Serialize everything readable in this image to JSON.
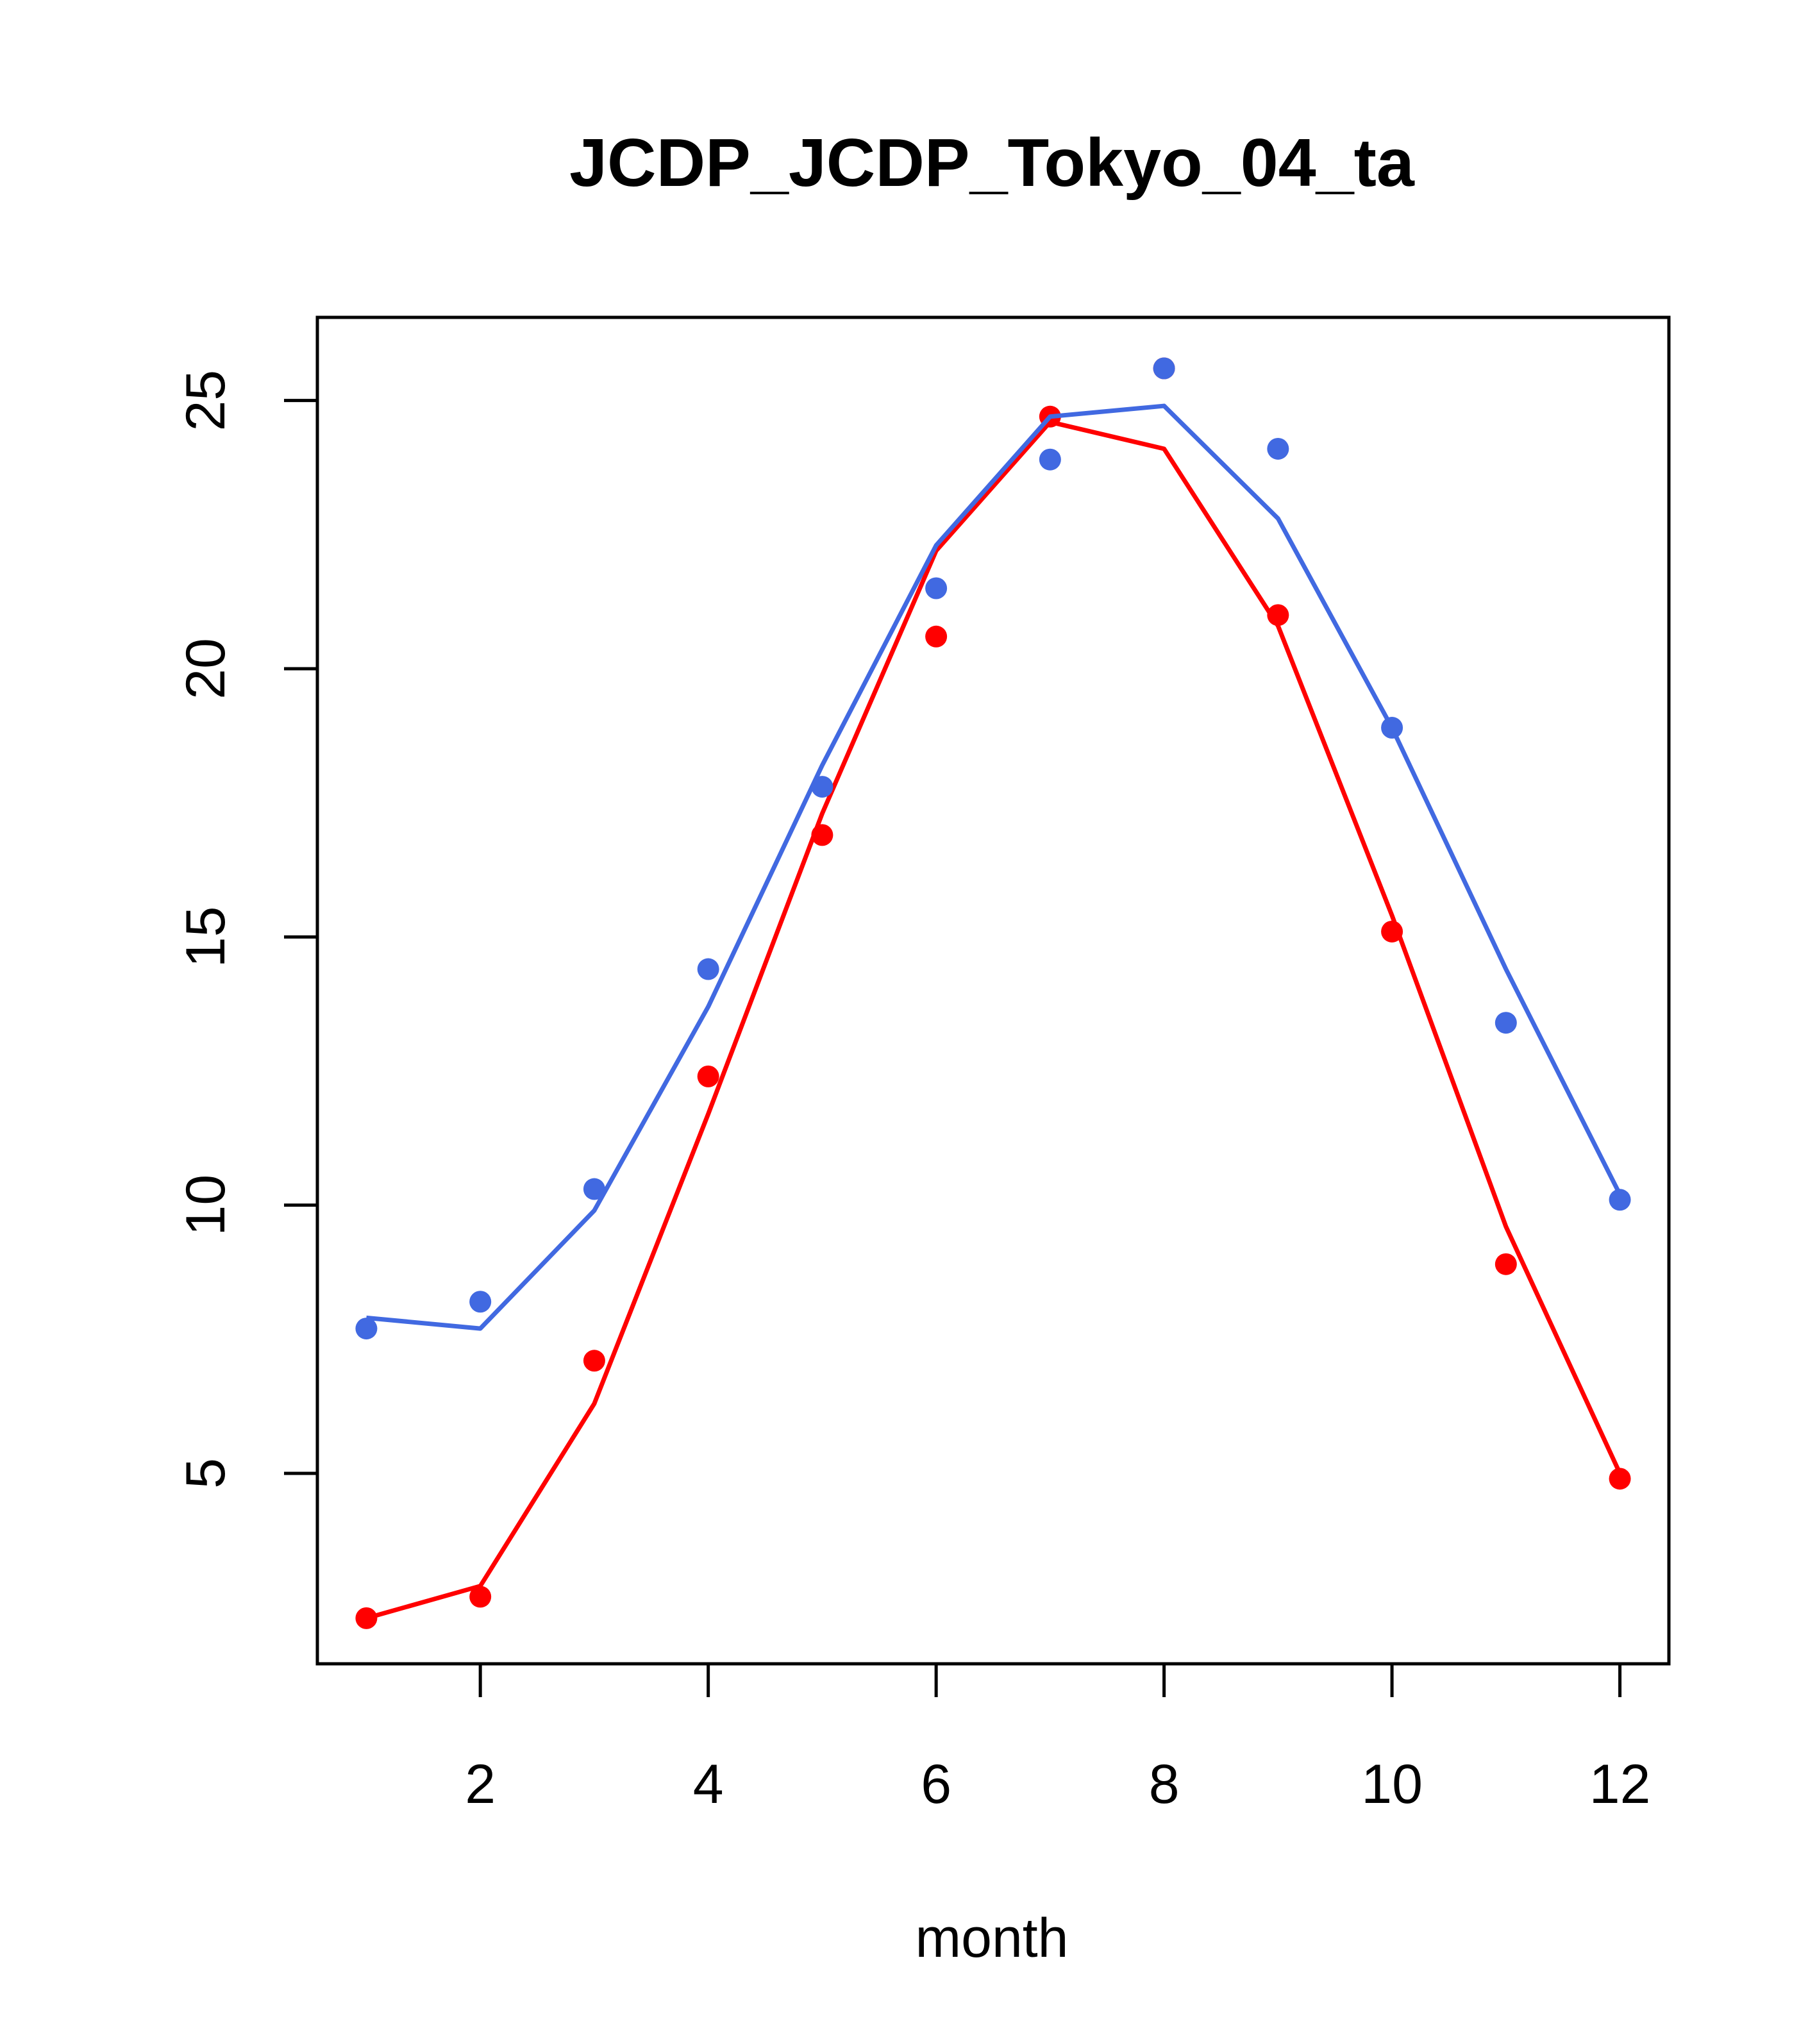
{
  "chart_data": {
    "type": "line",
    "title": "JCDP_JCDP_Tokyo_04_ta",
    "xlabel": "month",
    "ylabel": "",
    "xlim": [
      0.57,
      12.43
    ],
    "ylim": [
      1.45,
      26.55
    ],
    "x_ticks": [
      2,
      4,
      6,
      8,
      10,
      12
    ],
    "y_ticks": [
      5,
      10,
      15,
      20,
      25
    ],
    "grid": false,
    "legend": "none",
    "x": [
      1,
      2,
      3,
      4,
      5,
      6,
      7,
      8,
      9,
      10,
      11,
      12
    ],
    "series": [
      {
        "color": "#ff0000",
        "line": [
          2.3,
          2.9,
          6.3,
          11.7,
          17.3,
          22.2,
          24.6,
          24.1,
          20.8,
          15.4,
          9.6,
          5.0
        ],
        "points": [
          2.3,
          2.7,
          7.1,
          12.4,
          16.9,
          20.6,
          24.7,
          25.6,
          21.0,
          15.1,
          8.9,
          4.9
        ]
      },
      {
        "color": "#4169e1",
        "line": [
          7.9,
          7.7,
          9.9,
          13.7,
          18.2,
          22.3,
          24.7,
          24.9,
          22.8,
          18.9,
          14.4,
          10.2
        ],
        "points": [
          7.7,
          8.2,
          10.3,
          14.4,
          17.8,
          21.5,
          23.9,
          25.6,
          24.1,
          18.9,
          13.4,
          10.1
        ]
      }
    ]
  }
}
